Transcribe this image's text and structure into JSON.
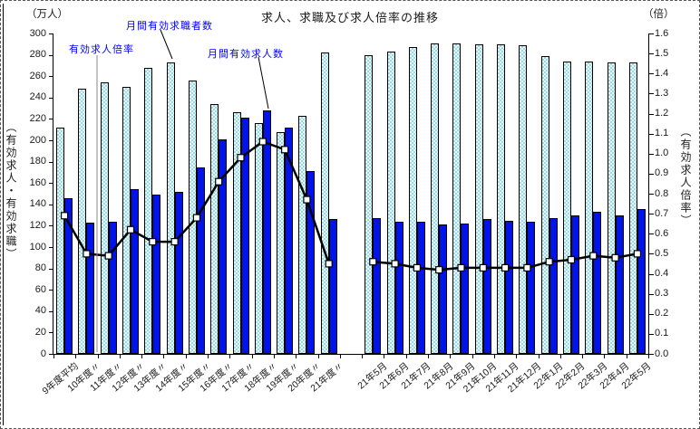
{
  "title": "求人、求職及び求人倍率の推移",
  "axes": {
    "left_unit": "（万人）",
    "right_unit": "（倍）",
    "left_label": "（有効求人・有効求職）",
    "right_label": "（有効求人倍率）"
  },
  "annotations": {
    "ratio_label": "有効求人倍率",
    "seekers_label": "月間有効求職者数",
    "offers_label": "月間有効求人数"
  },
  "chart_data": {
    "type": "bar",
    "subtype": "bar+line combo, dual axis, gap between annual and monthly groups",
    "categories": [
      "9年度平均",
      "10年度〃",
      "11年度〃",
      "12年度〃",
      "13年度〃",
      "14年度〃",
      "15年度〃",
      "16年度〃",
      "17年度〃",
      "18年度〃",
      "19年度〃",
      "20年度〃",
      "21年度〃",
      "21年5月",
      "21年6月",
      "21年7月",
      "21年8月",
      "21年9月",
      "21年10月",
      "21年11月",
      "21年12月",
      "22年1月",
      "22年2月",
      "22年3月",
      "22年4月",
      "22年5月"
    ],
    "gap_after_index": 12,
    "series": [
      {
        "name": "月間有効求職者数",
        "type": "bar",
        "axis": "left",
        "values": [
          212,
          248,
          254,
          250,
          268,
          273,
          256,
          234,
          226,
          216,
          208,
          223,
          282,
          280,
          283,
          287,
          291,
          291,
          290,
          290,
          289,
          279,
          274,
          274,
          273,
          273
        ]
      },
      {
        "name": "月間有効求人数",
        "type": "bar",
        "axis": "left",
        "values": [
          146,
          123,
          124,
          154,
          149,
          152,
          175,
          201,
          221,
          228,
          212,
          171,
          126,
          127,
          124,
          124,
          121,
          122,
          126,
          125,
          124,
          127,
          130,
          133,
          130,
          136
        ]
      },
      {
        "name": "有効求人倍率",
        "type": "line",
        "axis": "right",
        "values": [
          0.69,
          0.5,
          0.49,
          0.62,
          0.56,
          0.56,
          0.68,
          0.86,
          0.98,
          1.06,
          1.02,
          0.77,
          0.45,
          0.46,
          0.45,
          0.43,
          0.42,
          0.43,
          0.43,
          0.43,
          0.43,
          0.46,
          0.47,
          0.49,
          0.48,
          0.5
        ]
      }
    ],
    "left_axis": {
      "min": 0,
      "max": 300,
      "step": 20,
      "unit": "万人",
      "tick_labels": [
        "300",
        "280",
        "260",
        "240",
        "220",
        "200",
        "180",
        "160",
        "140",
        "120",
        "100",
        "80",
        "60",
        "40",
        "20",
        "0"
      ]
    },
    "right_axis": {
      "min": 0.0,
      "max": 1.6,
      "step": 0.1,
      "unit": "倍",
      "tick_labels": [
        "1.6",
        "1.5",
        "1.4",
        "1.3",
        "1.2",
        "1.1",
        "1.0",
        "0.9",
        "0.8",
        "0.7",
        "0.6",
        "0.5",
        "0.4",
        "0.3",
        "0.2",
        "0.1",
        "0.0"
      ]
    },
    "grid": false,
    "legend_position": "none (inline blue annotations with leader lines)",
    "colors": {
      "seekers_bar_fill": "#bfe9ee",
      "seekers_bar_pattern": "#9cd9e0",
      "offers_bar": "#0013e8",
      "line": "#000000",
      "marker_fill": "#ffffff",
      "annotation_text": "#0000ff",
      "leader_gray": "#8a8a8a"
    }
  }
}
